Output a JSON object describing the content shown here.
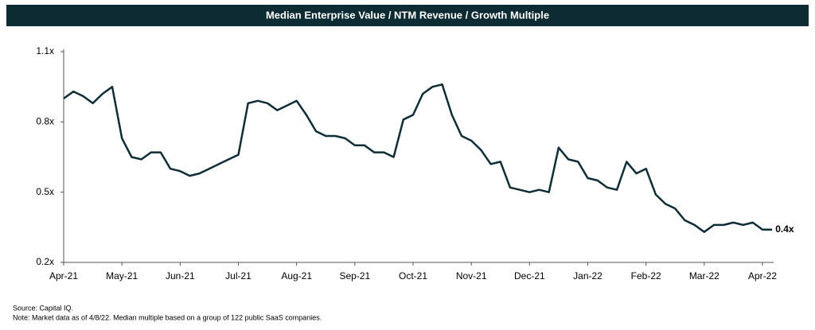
{
  "chart_data": {
    "type": "line",
    "title": "Median Enterprise Value / NTM Revenue / Growth Multiple",
    "categories": [
      "Apr-21",
      null,
      null,
      null,
      null,
      null,
      "May-21",
      null,
      null,
      null,
      null,
      null,
      "Jun-21",
      null,
      null,
      null,
      null,
      null,
      "Jul-21",
      null,
      null,
      null,
      null,
      null,
      "Aug-21",
      null,
      null,
      null,
      null,
      null,
      "Sep-21",
      null,
      null,
      null,
      null,
      null,
      "Oct-21",
      null,
      null,
      null,
      null,
      null,
      "Nov-21",
      null,
      null,
      null,
      null,
      null,
      "Dec-21",
      null,
      null,
      null,
      null,
      null,
      "Jan-22",
      null,
      null,
      null,
      null,
      null,
      "Feb-22",
      null,
      null,
      null,
      null,
      null,
      "Mar-22",
      null,
      null,
      null,
      null,
      null,
      "Apr-22",
      null
    ],
    "values": [
      0.9,
      0.93,
      0.91,
      0.88,
      0.92,
      0.95,
      0.73,
      0.65,
      0.64,
      0.67,
      0.67,
      0.6,
      0.59,
      0.57,
      0.58,
      0.6,
      0.62,
      0.64,
      0.66,
      0.88,
      0.89,
      0.88,
      0.85,
      0.87,
      0.89,
      0.83,
      0.76,
      0.74,
      0.74,
      0.73,
      0.7,
      0.7,
      0.67,
      0.67,
      0.65,
      0.81,
      0.83,
      0.92,
      0.95,
      0.96,
      0.83,
      0.74,
      0.72,
      0.68,
      0.62,
      0.63,
      0.52,
      0.51,
      0.5,
      0.51,
      0.5,
      0.69,
      0.64,
      0.63,
      0.56,
      0.55,
      0.52,
      0.51,
      0.63,
      0.58,
      0.6,
      0.49,
      0.45,
      0.43,
      0.38,
      0.36,
      0.33,
      0.36,
      0.36,
      0.37,
      0.36,
      0.37,
      0.34,
      0.34
    ],
    "color": "#0f2d36",
    "ylim": [
      0.2,
      1.1
    ],
    "yticks": [
      {
        "value": 0.2,
        "label": "0.2x"
      },
      {
        "value": 0.5,
        "label": "0.5x"
      },
      {
        "value": 0.8,
        "label": "0.8x"
      },
      {
        "value": 1.1,
        "label": "1.1x"
      }
    ],
    "grid": false,
    "annotation": "0.4x",
    "source": "Source: Capital IQ.",
    "note": "Note: Market data as of 4/8/22.  Median multiple based on a group of 122 public SaaS companies."
  }
}
